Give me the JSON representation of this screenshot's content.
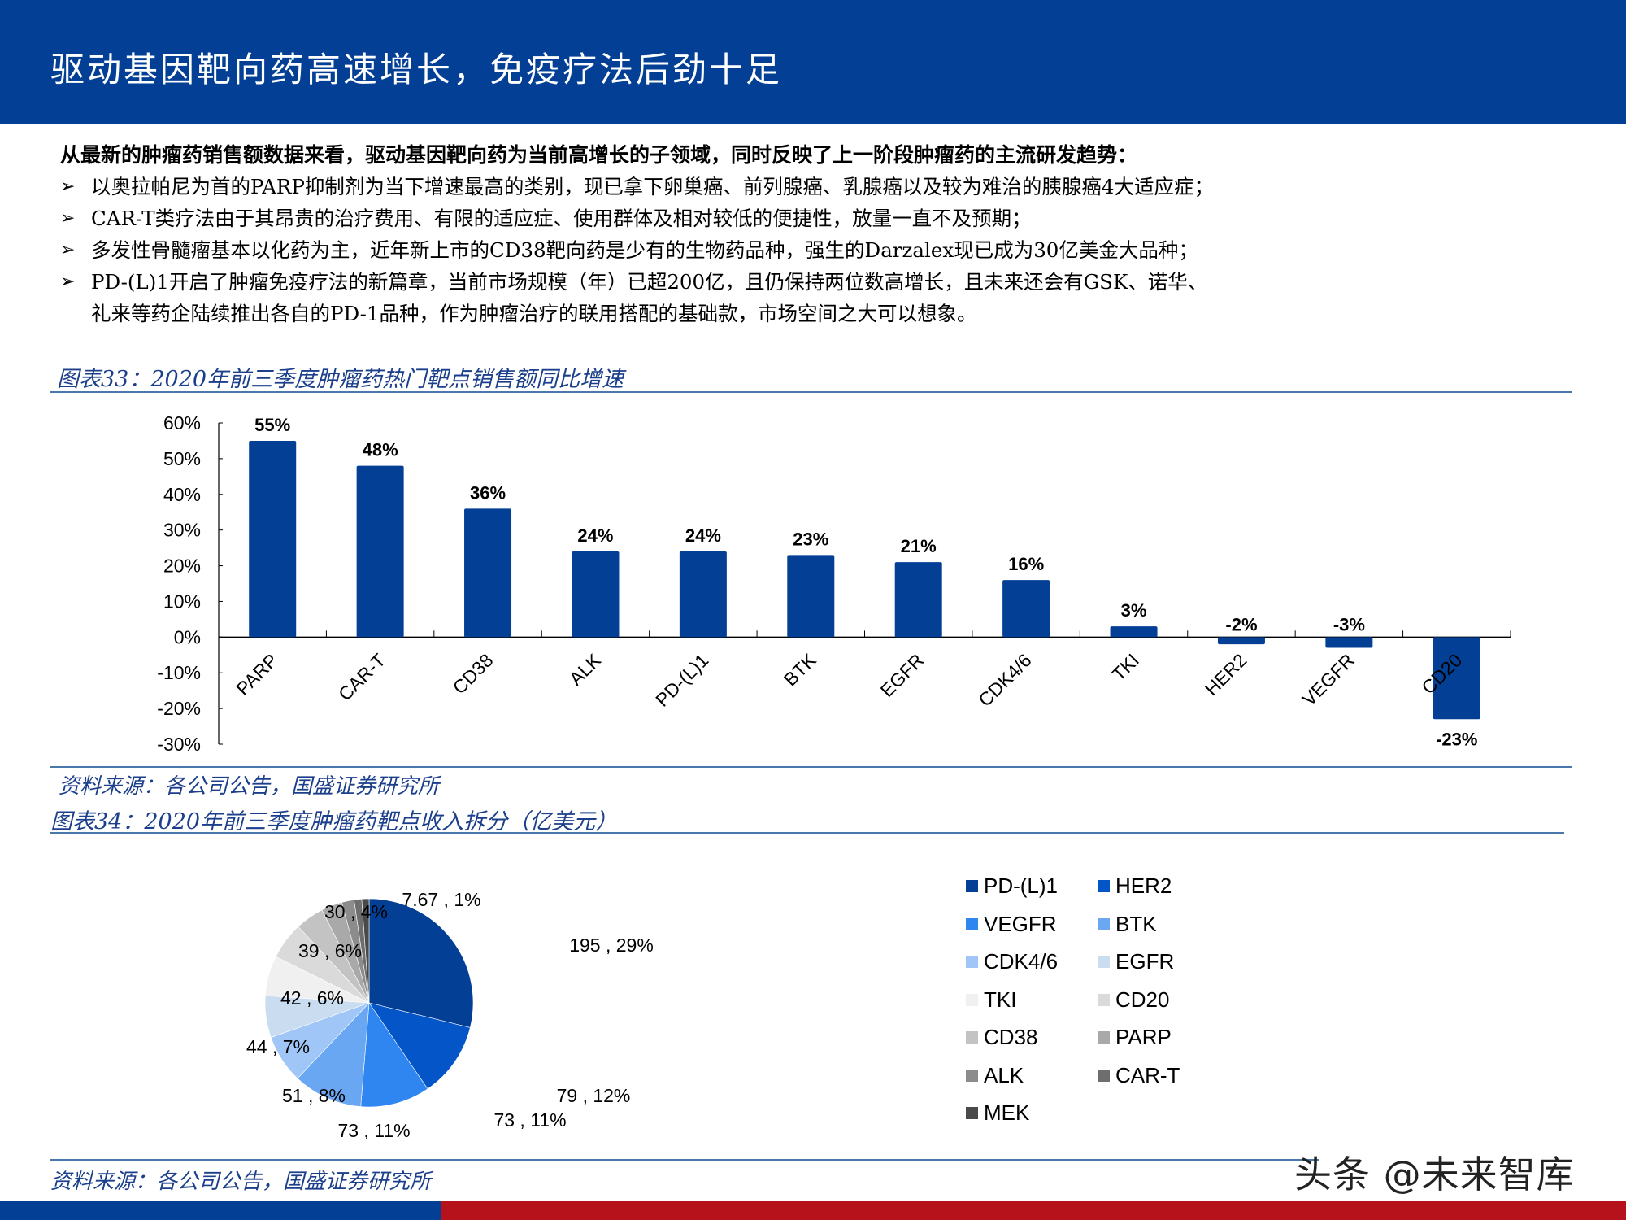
{
  "header": {
    "title": "驱动基因靶向药高速增长，免疫疗法后劲十足"
  },
  "intro": {
    "lead": "从最新的肿瘤药销售额数据来看，驱动基因靶向药为当前高增长的子领域，同时反映了上一阶段肿瘤药的主流研发趋势：",
    "bullet_glyph": "➢",
    "bullets": [
      {
        "text": "以奥拉帕尼为首的PARP抑制剂为当下增速最高的类别，现已拿下卵巢癌、前列腺癌、乳腺癌以及较为难治的胰腺癌4大适应症；"
      },
      {
        "text": "CAR-T类疗法由于其昂贵的治疗费用、有限的适应症、使用群体及相对较低的便捷性，放量一直不及预期；"
      },
      {
        "text": "多发性骨髓瘤基本以化药为主，近年新上市的CD38靶向药是少有的生物药品种，强生的Darzalex现已成为30亿美金大品种；"
      },
      {
        "text": "PD-(L)1开启了肿瘤免疫疗法的新篇章，当前市场规模（年）已超200亿，且仍保持两位数高增长，且未来还会有GSK、诺华、",
        "continuation": "礼来等药企陆续推出各自的PD-1品种，作为肿瘤治疗的联用搭配的基础款，市场空间之大可以想象。"
      }
    ]
  },
  "figure33": {
    "title": "图表33：2020年前三季度肿瘤药热门靶点销售额同比增速",
    "source": "资料来源：各公司公告，国盛证券研究所"
  },
  "figure34": {
    "title": "图表34：2020年前三季度肿瘤药靶点收入拆分（亿美元）",
    "source": "资料来源：各公司公告，国盛证券研究所"
  },
  "watermark": "头条 @未来智库",
  "colors": {
    "brand_blue": "#023f95",
    "brand_red": "#b5121b",
    "bar": "#023f95",
    "caption": "#1b3f8b"
  },
  "chart_data": [
    {
      "type": "bar",
      "title": "2020年前三季度肿瘤药热门靶点销售额同比增速",
      "xlabel": "",
      "ylabel": "",
      "ylim": [
        -0.3,
        0.6
      ],
      "yticks": [
        "60%",
        "50%",
        "40%",
        "30%",
        "20%",
        "10%",
        "0%",
        "-10%",
        "-20%",
        "-30%"
      ],
      "grid": false,
      "categories": [
        "PARP",
        "CAR-T",
        "CD38",
        "ALK",
        "PD-(L)1",
        "BTK",
        "EGFR",
        "CDK4/6",
        "TKI",
        "HER2",
        "VEGFR",
        "CD20"
      ],
      "values": [
        0.55,
        0.48,
        0.36,
        0.24,
        0.24,
        0.23,
        0.21,
        0.16,
        0.03,
        -0.02,
        -0.03,
        -0.23
      ],
      "labels": [
        "55%",
        "48%",
        "36%",
        "24%",
        "24%",
        "23%",
        "21%",
        "16%",
        "3%",
        "-2%",
        "-3%",
        "-23%"
      ]
    },
    {
      "type": "pie",
      "title": "2020年前三季度肿瘤药靶点收入拆分（亿美元）",
      "legend_position": "right",
      "categories": [
        "PD-(L)1",
        "HER2",
        "VEGFR",
        "BTK",
        "CDK4/6",
        "EGFR",
        "TKI",
        "CD20",
        "CD38",
        "PARP",
        "ALK",
        "CAR-T",
        "MEK"
      ],
      "values": [
        195,
        79,
        73,
        73,
        51,
        44,
        42,
        39,
        30,
        22,
        13,
        8,
        7.67
      ],
      "slice_labels": [
        "195 , 29%",
        "79 , 12%",
        "73 , 11%",
        "73 , 11%",
        "51 , 8%",
        "44 , 7%",
        "42 , 6%",
        "39 , 6%",
        "30 , 4%",
        "",
        "",
        "",
        "7.67 , 1%"
      ],
      "colors": [
        "#023f95",
        "#0355c8",
        "#2f86f0",
        "#6aa7f2",
        "#9fc6f7",
        "#c9dcf0",
        "#f0f0f0",
        "#dadada",
        "#c3c3c3",
        "#a9a9a9",
        "#8c8c8c",
        "#6e6e6e",
        "#4a4a4a"
      ]
    }
  ],
  "legend": [
    {
      "label": "PD-(L)1",
      "color": "#023f95"
    },
    {
      "label": "HER2",
      "color": "#0355c8"
    },
    {
      "label": "VEGFR",
      "color": "#2f86f0"
    },
    {
      "label": "BTK",
      "color": "#6aa7f2"
    },
    {
      "label": "CDK4/6",
      "color": "#9fc6f7"
    },
    {
      "label": "EGFR",
      "color": "#c9dcf0"
    },
    {
      "label": "TKI",
      "color": "#f0f0f0"
    },
    {
      "label": "CD20",
      "color": "#dadada"
    },
    {
      "label": "CD38",
      "color": "#c3c3c3"
    },
    {
      "label": "PARP",
      "color": "#a9a9a9"
    },
    {
      "label": "ALK",
      "color": "#8c8c8c"
    },
    {
      "label": "CAR-T",
      "color": "#6e6e6e"
    },
    {
      "label": "MEK",
      "color": "#4a4a4a"
    }
  ]
}
